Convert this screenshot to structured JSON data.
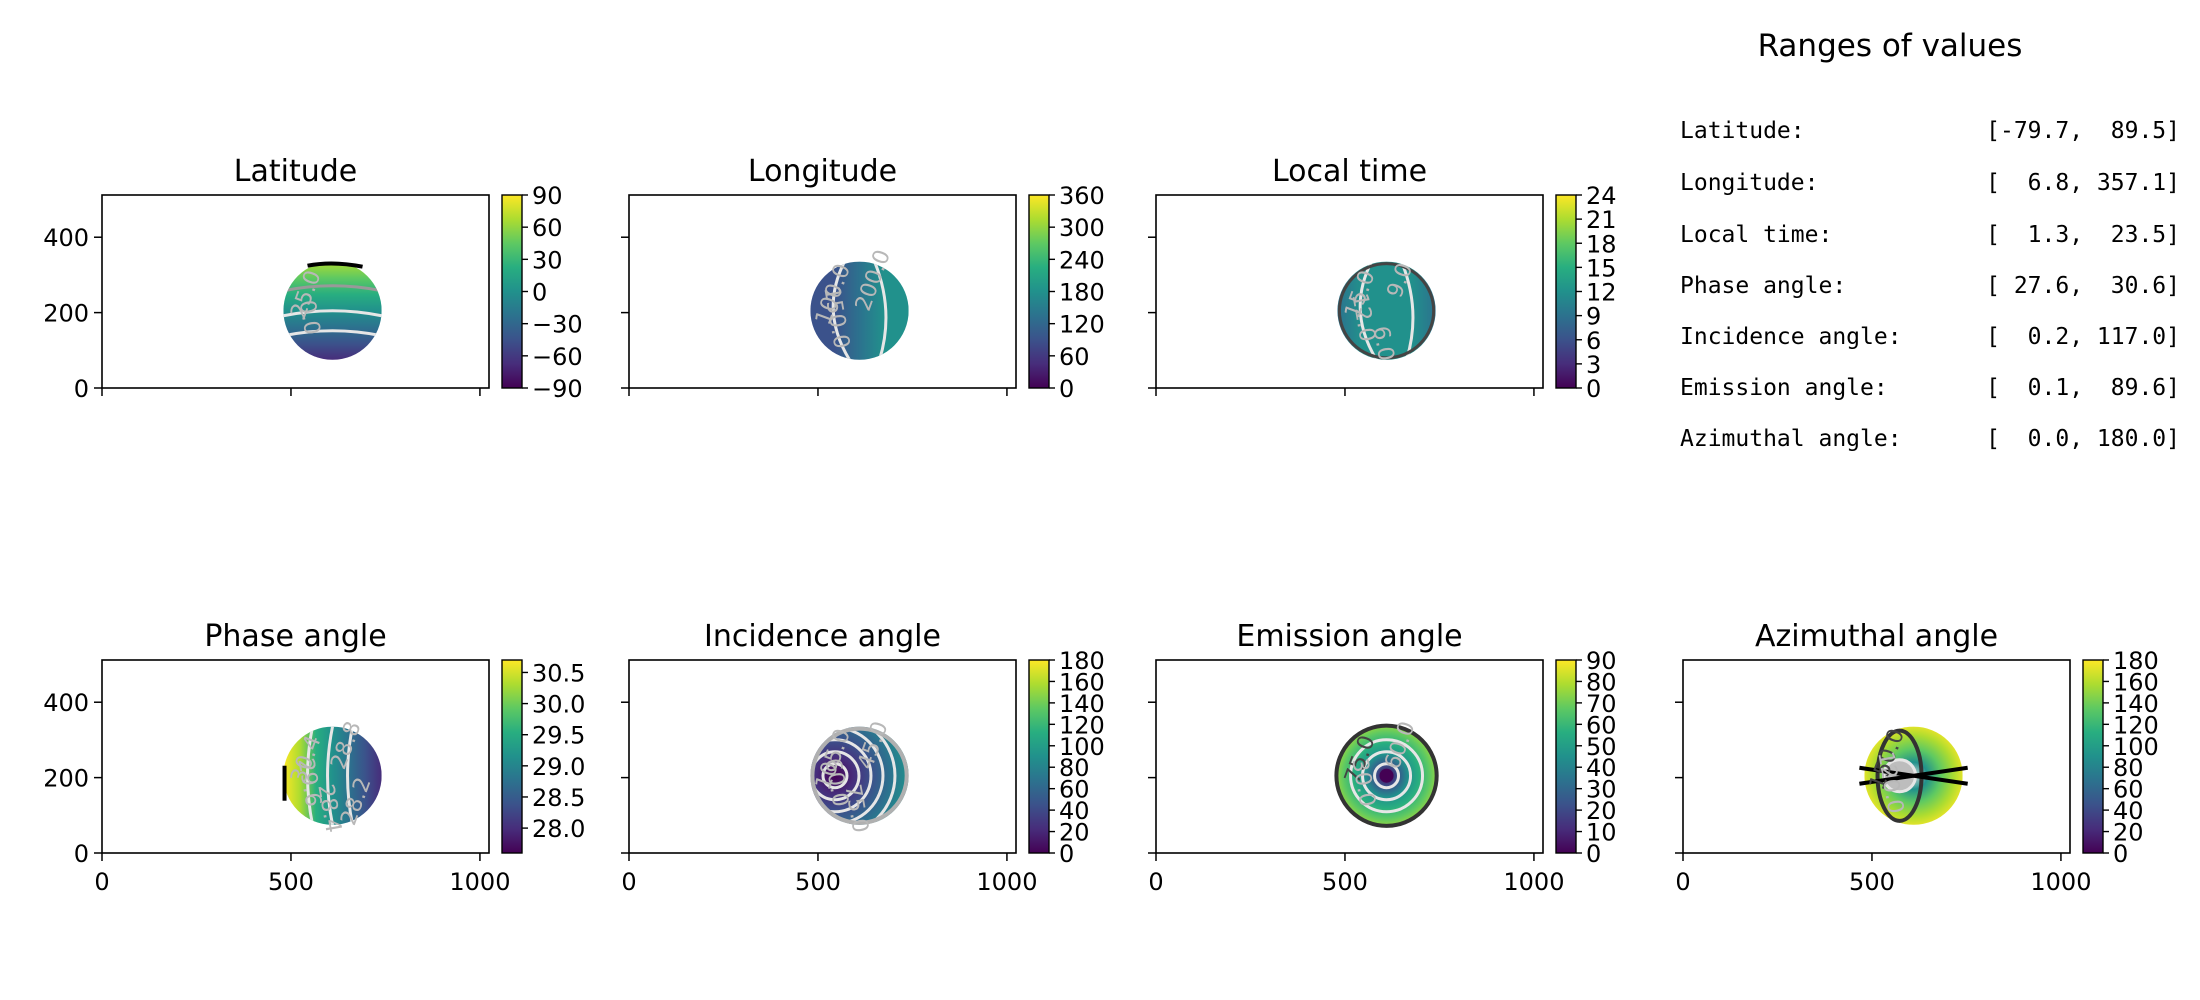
{
  "colors": {
    "viridis": [
      "#440154",
      "#472d7b",
      "#3b528b",
      "#2c728e",
      "#21918c",
      "#28ae80",
      "#5ec962",
      "#addc30",
      "#fde725"
    ],
    "contour_light": "#e6e6e6",
    "contour_gray": "#999999",
    "contour_dark": "#333333",
    "axis": "#000000"
  },
  "chart_data": [
    {
      "type": "heatmap",
      "title": "Latitude",
      "xlim": [
        0,
        1024
      ],
      "ylim": [
        0,
        512
      ],
      "xticks": [
        0,
        500,
        1000
      ],
      "yticks": [
        "0",
        "200",
        "400"
      ],
      "show_xticklabels": false,
      "show_yticklabels": true,
      "colorbar": {
        "range": [
          -90,
          90
        ],
        "ticks": [
          "−90",
          "−60",
          "−30",
          "0",
          "30",
          "60",
          "90"
        ]
      },
      "disk": {
        "cx": 610,
        "cy": 205,
        "r": 130
      },
      "gradient_direction": "vertical",
      "contour_labels": [
        "25.0",
        "0.0"
      ]
    },
    {
      "type": "heatmap",
      "title": "Longitude",
      "xlim": [
        0,
        1024
      ],
      "ylim": [
        0,
        512
      ],
      "xticks": [
        0,
        500,
        1000
      ],
      "yticks": [
        "0",
        "200",
        "400"
      ],
      "show_xticklabels": false,
      "show_yticklabels": false,
      "colorbar": {
        "range": [
          0,
          360
        ],
        "ticks": [
          "0",
          "60",
          "120",
          "180",
          "240",
          "300",
          "360"
        ]
      },
      "disk": {
        "cx": 610,
        "cy": 205,
        "r": 130
      },
      "gradient_direction": "horizontal",
      "contour_labels": [
        "100.0",
        "150.0",
        "200.0"
      ]
    },
    {
      "type": "heatmap",
      "title": "Local time",
      "xlim": [
        0,
        1024
      ],
      "ylim": [
        0,
        512
      ],
      "xticks": [
        0,
        500,
        1000
      ],
      "yticks": [
        "0",
        "200",
        "400"
      ],
      "show_xticklabels": false,
      "show_yticklabels": false,
      "colorbar": {
        "range": [
          0,
          24
        ],
        "ticks": [
          "0",
          "3",
          "6",
          "9",
          "12",
          "15",
          "18",
          "21",
          "24"
        ]
      },
      "disk": {
        "cx": 610,
        "cy": 205,
        "r": 130
      },
      "gradient_direction": "horizontal",
      "contour_labels": [
        "15.0",
        "12.0",
        "9.0",
        "6.0"
      ]
    },
    {
      "type": "heatmap",
      "title": "Phase angle",
      "xlim": [
        0,
        1024
      ],
      "ylim": [
        0,
        512
      ],
      "xticks": [
        0,
        500,
        1000
      ],
      "yticks": [
        "0",
        "200",
        "400"
      ],
      "show_xticklabels": true,
      "show_yticklabels": true,
      "colorbar": {
        "range": [
          27.6,
          30.7
        ],
        "ticks": [
          "28.0",
          "28.5",
          "29.0",
          "29.5",
          "30.0",
          "30.5"
        ]
      },
      "disk": {
        "cx": 610,
        "cy": 205,
        "r": 130
      },
      "gradient_direction": "horizontal-reverse",
      "contour_labels": [
        "30.4",
        "29.6",
        "28.8",
        "28.4",
        "28.2"
      ]
    },
    {
      "type": "heatmap",
      "title": "Incidence angle",
      "xlim": [
        0,
        1024
      ],
      "ylim": [
        0,
        512
      ],
      "xticks": [
        0,
        500,
        1000
      ],
      "yticks": [
        "0",
        "200",
        "400"
      ],
      "show_xticklabels": true,
      "show_yticklabels": false,
      "colorbar": {
        "range": [
          0,
          180
        ],
        "ticks": [
          "0",
          "20",
          "40",
          "60",
          "80",
          "100",
          "120",
          "140",
          "160",
          "180"
        ]
      },
      "disk": {
        "cx": 610,
        "cy": 205,
        "r": 130
      },
      "gradient_direction": "radial",
      "center": {
        "x": 545,
        "y": 205
      },
      "contour_labels": [
        "105.0",
        "60.0",
        "45.0",
        "75.0"
      ]
    },
    {
      "type": "heatmap",
      "title": "Emission angle",
      "xlim": [
        0,
        1024
      ],
      "ylim": [
        0,
        512
      ],
      "xticks": [
        0,
        500,
        1000
      ],
      "yticks": [
        "0",
        "200",
        "400"
      ],
      "show_xticklabels": true,
      "show_yticklabels": false,
      "colorbar": {
        "range": [
          0,
          90
        ],
        "ticks": [
          "0",
          "10",
          "20",
          "30",
          "40",
          "50",
          "60",
          "70",
          "80",
          "90"
        ]
      },
      "disk": {
        "cx": 610,
        "cy": 205,
        "r": 130
      },
      "gradient_direction": "radial",
      "center": {
        "x": 610,
        "y": 205
      },
      "contour_labels": [
        "75.0",
        "30.0",
        "60.0"
      ]
    },
    {
      "type": "heatmap",
      "title": "Azimuthal angle",
      "xlim": [
        0,
        1024
      ],
      "ylim": [
        0,
        512
      ],
      "xticks": [
        0,
        500,
        1000
      ],
      "yticks": [
        "0",
        "200",
        "400"
      ],
      "show_xticklabels": true,
      "show_yticklabels": false,
      "colorbar": {
        "range": [
          0,
          180
        ],
        "ticks": [
          "0",
          "20",
          "40",
          "60",
          "80",
          "100",
          "120",
          "140",
          "160",
          "180"
        ]
      },
      "disk": {
        "cx": 610,
        "cy": 205,
        "r": 130
      },
      "gradient_direction": "azimuthal",
      "contour_labels": [
        "150.0",
        "120.0"
      ]
    }
  ],
  "ranges": {
    "title": "Ranges of values",
    "rows": [
      {
        "label": "Latitude:",
        "value": "[-79.7,  89.5]"
      },
      {
        "label": "Longitude:",
        "value": "[  6.8, 357.1]"
      },
      {
        "label": "Local time:",
        "value": "[  1.3,  23.5]"
      },
      {
        "label": "Phase angle:",
        "value": "[ 27.6,  30.6]"
      },
      {
        "label": "Incidence angle:",
        "value": "[  0.2, 117.0]"
      },
      {
        "label": "Emission angle:",
        "value": "[  0.1,  89.6]"
      },
      {
        "label": "Azimuthal angle:",
        "value": "[  0.0, 180.0]"
      }
    ]
  }
}
